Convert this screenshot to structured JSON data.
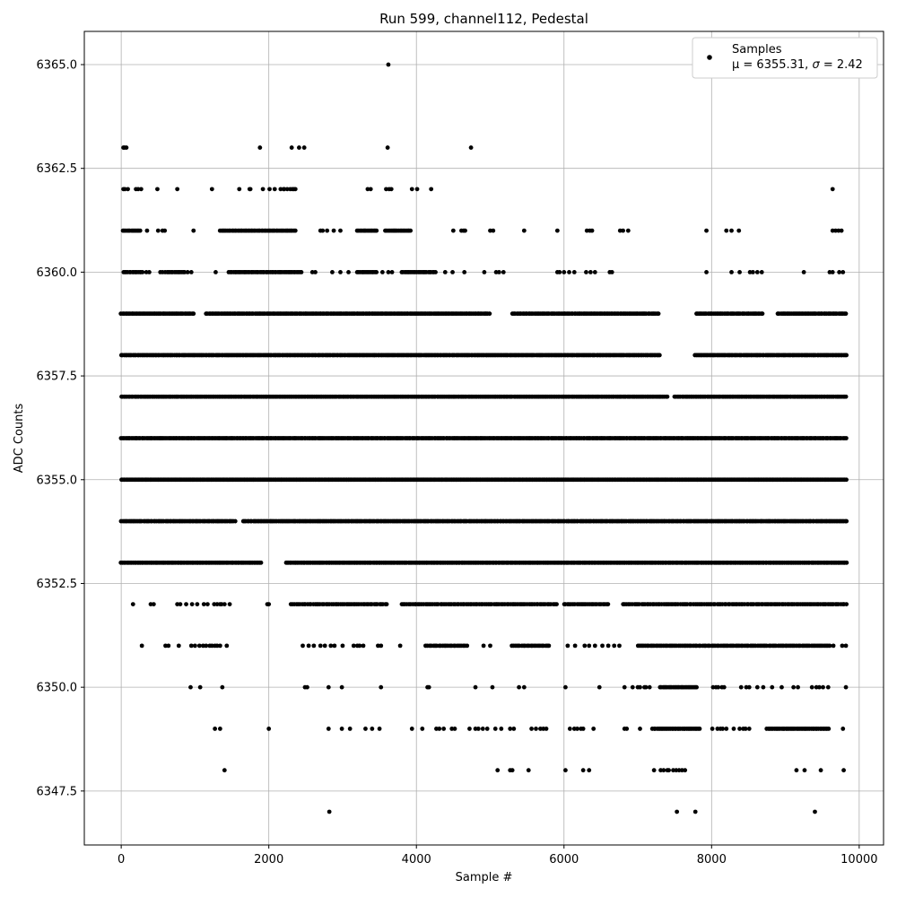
{
  "chart_data": {
    "type": "scatter",
    "title": "Run 599, channel112, Pedestal",
    "xlabel": "Sample #",
    "ylabel": "ADC Counts",
    "xlim": [
      -500,
      10330
    ],
    "ylim": [
      6346.2,
      6365.8
    ],
    "xticks": [
      0,
      2000,
      4000,
      6000,
      8000,
      10000
    ],
    "yticks": [
      6347.5,
      6350.0,
      6352.5,
      6355.0,
      6357.5,
      6360.0,
      6362.5,
      6365.0
    ],
    "ytick_labels": [
      "6347.5",
      "6350.0",
      "6352.5",
      "6355.0",
      "6357.5",
      "6360.0",
      "6362.5",
      "6365.0"
    ],
    "grid": true,
    "legend": {
      "placement": "top-right",
      "line1": "Samples",
      "line2_prefix": "μ = 6355.31, ",
      "line2_sigma": "σ",
      "line2_suffix": " = 2.42"
    },
    "marker_color": "#000000",
    "x_max_sample": 9830,
    "series": [
      {
        "name": "Samples",
        "rows": [
          {
            "y": 6365,
            "x": [
              3620
            ]
          },
          {
            "y": 6363,
            "x": [
              30,
              45,
              70,
              1880,
              2310,
              2410,
              2480,
              3610,
              4740
            ]
          },
          {
            "y": 6362,
            "x": [
              30,
              50,
              90,
              200,
              230,
              270,
              490,
              760,
              1230,
              1600,
              1740,
              1750,
              1920,
              2010,
              2080,
              2160,
              2200,
              2210,
              2250,
              2290,
              2320,
              2340,
              2360,
              3340,
              3380,
              3590,
              3630,
              3660,
              3940,
              4010,
              4200,
              9640
            ]
          },
          {
            "seg": [
              [
                20,
                260
              ],
              [
                1340,
                2360
              ],
              [
                3200,
                3460
              ],
              [
                3580,
                3930
              ]
            ],
            "step": 20,
            "y": 6361,
            "x": [
              350,
              500,
              560,
              590,
              980,
              2700,
              2730,
              2790,
              2880,
              2970,
              4500,
              4610,
              4640,
              4660,
              5000,
              5040,
              5460,
              5910,
              6310,
              6350,
              6380,
              6760,
              6800,
              6870,
              7930,
              8200,
              8270,
              8370,
              9640,
              9680,
              9720,
              9760
            ]
          },
          {
            "seg": [
              [
                30,
                300
              ],
              [
                600,
                860
              ],
              [
                1460,
                2450
              ],
              [
                3200,
                3460
              ],
              [
                3800,
                4270
              ]
            ],
            "step": 20,
            "y": 6360,
            "x": [
              340,
              380,
              530,
              560,
              900,
              950,
              1280,
              2590,
              2630,
              2860,
              2970,
              3080,
              3540,
              3620,
              3670,
              4390,
              4490,
              4650,
              4920,
              5080,
              5120,
              5180,
              5910,
              5940,
              6000,
              6070,
              6140,
              6300,
              6360,
              6420,
              6620,
              6650,
              7930,
              8270,
              8380,
              8520,
              8560,
              8620,
              8680,
              9250,
              9600,
              9640,
              9730,
              9780
            ]
          },
          {
            "seg": [
              [
                0,
                980
              ],
              [
                1150,
                5000
              ],
              [
                5300,
                7280
              ],
              [
                7790,
                8700
              ],
              [
                8900,
                9830
              ]
            ],
            "step": 20,
            "y": 6359,
            "x": []
          },
          {
            "seg": [
              [
                0,
                7300
              ],
              [
                7770,
                9830
              ]
            ],
            "step": 20,
            "y": 6358,
            "x": []
          },
          {
            "seg": [
              [
                0,
                7400
              ],
              [
                7500,
                9830
              ]
            ],
            "step": 20,
            "y": 6357,
            "x": []
          },
          {
            "seg": [
              [
                0,
                9830
              ]
            ],
            "step": 20,
            "y": 6356,
            "x": []
          },
          {
            "seg": [
              [
                0,
                9830
              ]
            ],
            "step": 15,
            "y": 6355,
            "x": []
          },
          {
            "seg": [
              [
                0,
                1550
              ],
              [
                1650,
                9830
              ]
            ],
            "step": 20,
            "y": 6354,
            "x": []
          },
          {
            "seg": [
              [
                0,
                1900
              ],
              [
                2230,
                9830
              ]
            ],
            "step": 20,
            "y": 6353,
            "x": []
          },
          {
            "seg": [
              [
                2300,
                3600
              ],
              [
                3800,
                5900
              ],
              [
                6000,
                6600
              ],
              [
                6800,
                9830
              ]
            ],
            "step": 25,
            "y": 6352,
            "x": [
              160,
              400,
              440,
              760,
              800,
              880,
              960,
              1030,
              1120,
              1170,
              1260,
              1300,
              1340,
              1360,
              1400,
              1470,
              1980,
              2000
            ]
          },
          {
            "seg": [
              [
                4130,
                4700
              ],
              [
                5300,
                5800
              ],
              [
                7000,
                9600
              ]
            ],
            "step": 25,
            "y": 6351,
            "x": [
              280,
              600,
              640,
              780,
              950,
              1000,
              1060,
              1110,
              1150,
              1200,
              1230,
              1270,
              1300,
              1340,
              1430,
              2460,
              2540,
              2610,
              2700,
              2760,
              2840,
              2890,
              3000,
              3150,
              3200,
              3230,
              3280,
              3480,
              3520,
              3780,
              4910,
              5000,
              6050,
              6150,
              6280,
              6340,
              6420,
              6520,
              6600,
              6680,
              6750,
              9650,
              9770,
              9820
            ]
          },
          {
            "seg": [
              [
                7300,
                7800
              ]
            ],
            "step": 20,
            "y": 6350,
            "x": [
              940,
              1070,
              1370,
              2490,
              2520,
              2810,
              2990,
              3520,
              4150,
              4170,
              4800,
              5030,
              5390,
              5460,
              6020,
              6480,
              6820,
              6930,
              7000,
              7030,
              7090,
              7110,
              7160,
              8020,
              8060,
              8090,
              8140,
              8170,
              8400,
              8470,
              8510,
              8620,
              8700,
              8820,
              8950,
              9110,
              9170,
              9360,
              9420,
              9460,
              9510,
              9580,
              9820
            ]
          },
          {
            "seg": [
              [
                7200,
                7850
              ],
              [
                8750,
                9600
              ]
            ],
            "step": 20,
            "y": 6349,
            "x": [
              1270,
              1340,
              2000,
              2810,
              2990,
              3100,
              3310,
              3400,
              3500,
              3940,
              4080,
              4270,
              4310,
              4370,
              4480,
              4520,
              4720,
              4800,
              4840,
              4900,
              4960,
              5070,
              5150,
              5270,
              5320,
              5560,
              5620,
              5680,
              5720,
              5760,
              6080,
              6140,
              6180,
              6230,
              6260,
              6400,
              6820,
              6850,
              7030,
              8010,
              8080,
              8120,
              8150,
              8200,
              8300,
              8380,
              8430,
              8460,
              8510,
              9780
            ]
          },
          {
            "y": 6348,
            "x": [
              1400,
              5100,
              5270,
              5300,
              5520,
              6020,
              6260,
              6340,
              7220,
              7310,
              7350,
              7400,
              7420,
              7480,
              7520,
              7560,
              7600,
              7640,
              9150,
              9260,
              9480,
              9790
            ]
          },
          {
            "y": 6347,
            "x": [
              2820,
              7530,
              7780,
              9400
            ]
          }
        ]
      }
    ]
  }
}
